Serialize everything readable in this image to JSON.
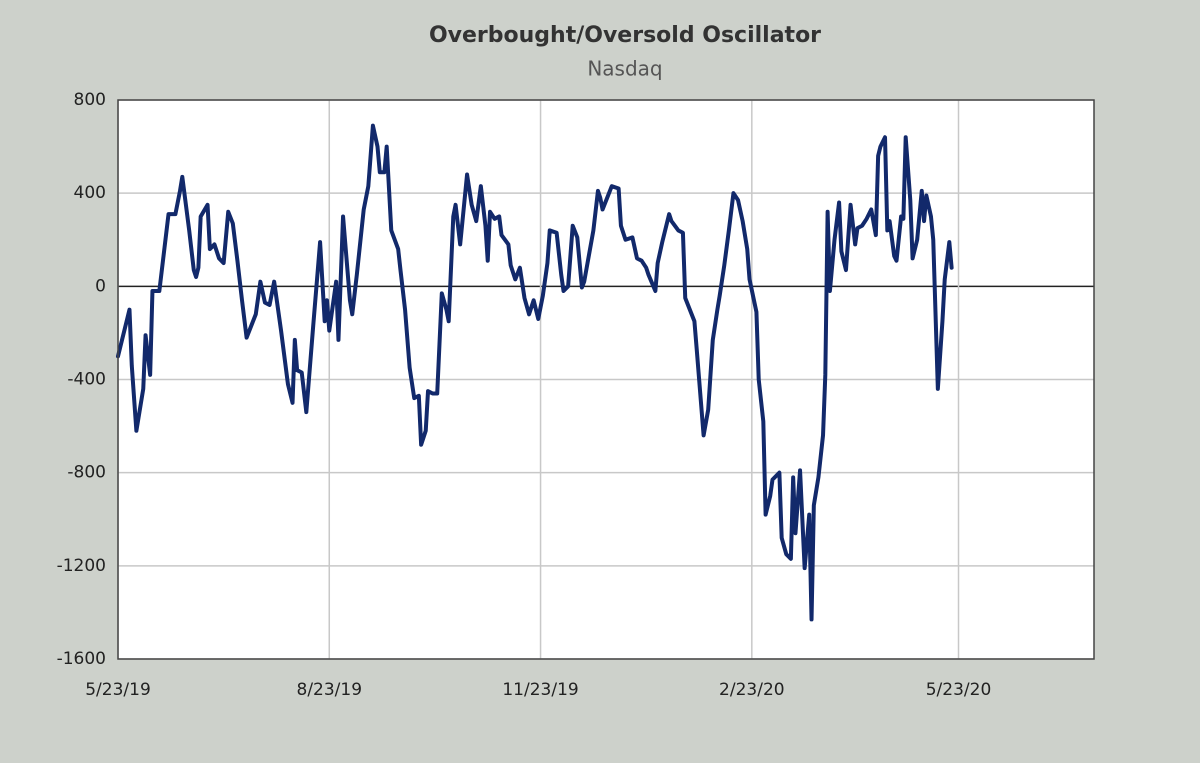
{
  "chart_data": {
    "type": "line",
    "title": "Overbought/Oversold  Oscillator",
    "subtitle": "Nasdaq",
    "color": "#12296b",
    "grid": true,
    "xlim": [
      "2019-05-23",
      "2020-07-21"
    ],
    "xticks": [
      {
        "value": "2019-05-23",
        "label": "5/23/19"
      },
      {
        "value": "2019-08-23",
        "label": "8/23/19"
      },
      {
        "value": "2019-11-23",
        "label": "11/23/19"
      },
      {
        "value": "2020-02-23",
        "label": "2/23/20"
      },
      {
        "value": "2020-05-23",
        "label": "5/23/20"
      }
    ],
    "ylim": [
      -1600,
      800
    ],
    "yticks": [
      -1600,
      -1200,
      -800,
      -400,
      0,
      400,
      800
    ],
    "x": [
      "2019-05-23",
      "2019-05-27",
      "2019-05-28",
      "2019-05-29",
      "2019-05-31",
      "2019-06-03",
      "2019-06-04",
      "2019-06-06",
      "2019-06-07",
      "2019-06-10",
      "2019-06-14",
      "2019-06-17",
      "2019-06-19",
      "2019-06-20",
      "2019-06-23",
      "2019-06-25",
      "2019-06-26",
      "2019-06-27",
      "2019-06-28",
      "2019-07-01",
      "2019-07-02",
      "2019-07-04",
      "2019-07-06",
      "2019-07-08",
      "2019-07-10",
      "2019-07-12",
      "2019-07-14",
      "2019-07-16",
      "2019-07-18",
      "2019-07-22",
      "2019-07-24",
      "2019-07-26",
      "2019-07-28",
      "2019-07-30",
      "2019-08-02",
      "2019-08-05",
      "2019-08-07",
      "2019-08-08",
      "2019-08-09",
      "2019-08-11",
      "2019-08-13",
      "2019-08-16",
      "2019-08-19",
      "2019-08-21",
      "2019-08-22",
      "2019-08-23",
      "2019-08-26",
      "2019-08-27",
      "2019-08-29",
      "2019-09-01",
      "2019-09-02",
      "2019-09-04",
      "2019-09-07",
      "2019-09-09",
      "2019-09-11",
      "2019-09-13",
      "2019-09-14",
      "2019-09-16",
      "2019-09-17",
      "2019-09-19",
      "2019-09-22",
      "2019-09-23",
      "2019-09-25",
      "2019-09-27",
      "2019-09-29",
      "2019-10-01",
      "2019-10-02",
      "2019-10-04",
      "2019-10-05",
      "2019-10-07",
      "2019-10-09",
      "2019-10-11",
      "2019-10-13",
      "2019-10-14",
      "2019-10-16",
      "2019-10-17",
      "2019-10-19",
      "2019-10-22",
      "2019-10-24",
      "2019-10-26",
      "2019-10-28",
      "2019-10-30",
      "2019-10-31",
      "2019-11-01",
      "2019-11-03",
      "2019-11-05",
      "2019-11-06",
      "2019-11-09",
      "2019-11-10",
      "2019-11-12",
      "2019-11-14",
      "2019-11-16",
      "2019-11-18",
      "2019-11-20",
      "2019-11-22",
      "2019-11-24",
      "2019-11-26",
      "2019-11-27",
      "2019-11-30",
      "2019-12-02",
      "2019-12-03",
      "2019-12-05",
      "2019-12-07",
      "2019-12-09",
      "2019-12-11",
      "2019-12-12",
      "2019-12-16",
      "2019-12-18",
      "2019-12-19",
      "2019-12-20",
      "2019-12-22",
      "2019-12-24",
      "2019-12-27",
      "2019-12-28",
      "2019-12-30",
      "2020-01-02",
      "2020-01-04",
      "2020-01-06",
      "2020-01-08",
      "2020-01-09",
      "2020-01-12",
      "2020-01-13",
      "2020-01-15",
      "2020-01-18",
      "2020-01-19",
      "2020-01-22",
      "2020-01-24",
      "2020-01-25",
      "2020-01-27",
      "2020-01-29",
      "2020-01-30",
      "2020-02-02",
      "2020-02-04",
      "2020-02-06",
      "2020-02-08",
      "2020-02-09",
      "2020-02-11",
      "2020-02-13",
      "2020-02-15",
      "2020-02-17",
      "2020-02-19",
      "2020-02-21",
      "2020-02-22",
      "2020-02-25",
      "2020-02-26",
      "2020-02-28",
      "2020-02-29",
      "2020-03-02",
      "2020-03-03",
      "2020-03-06",
      "2020-03-07",
      "2020-03-09",
      "2020-03-11",
      "2020-03-12",
      "2020-03-13",
      "2020-03-15",
      "2020-03-17",
      "2020-03-19",
      "2020-03-20",
      "2020-03-21",
      "2020-03-23",
      "2020-03-25",
      "2020-03-26",
      "2020-03-27",
      "2020-03-28",
      "2020-03-30",
      "2020-04-01",
      "2020-04-02",
      "2020-04-04",
      "2020-04-06",
      "2020-04-08",
      "2020-04-09",
      "2020-04-11",
      "2020-04-13",
      "2020-04-15",
      "2020-04-17",
      "2020-04-18",
      "2020-04-19",
      "2020-04-21",
      "2020-04-22",
      "2020-04-23",
      "2020-04-25",
      "2020-04-26",
      "2020-04-28",
      "2020-04-29",
      "2020-04-30",
      "2020-05-02",
      "2020-05-03",
      "2020-05-05",
      "2020-05-07",
      "2020-05-08",
      "2020-05-09",
      "2020-05-11",
      "2020-05-12",
      "2020-05-14",
      "2020-05-16",
      "2020-05-17",
      "2020-05-19",
      "2020-05-20"
    ],
    "values": [
      -300,
      -140,
      -100,
      -340,
      -620,
      -440,
      -210,
      -380,
      -20,
      -20,
      310,
      310,
      410,
      470,
      240,
      70,
      40,
      80,
      300,
      350,
      160,
      180,
      120,
      100,
      320,
      270,
      110,
      -60,
      -220,
      -120,
      20,
      -70,
      -80,
      20,
      -190,
      -420,
      -500,
      -230,
      -360,
      -370,
      -540,
      -170,
      190,
      -150,
      -60,
      -190,
      20,
      -230,
      300,
      -60,
      -120,
      50,
      330,
      430,
      690,
      600,
      490,
      490,
      600,
      240,
      160,
      70,
      -100,
      -350,
      -480,
      -470,
      -680,
      -620,
      -450,
      -460,
      -460,
      -30,
      -100,
      -150,
      300,
      350,
      180,
      480,
      350,
      280,
      430,
      260,
      110,
      320,
      290,
      300,
      220,
      180,
      90,
      30,
      80,
      -50,
      -120,
      -60,
      -140,
      -40,
      100,
      240,
      230,
      50,
      -20,
      0,
      260,
      210,
      -5,
      20,
      240,
      410,
      380,
      330,
      380,
      430,
      420,
      260,
      200,
      210,
      120,
      110,
      80,
      50,
      -20,
      100,
      190,
      310,
      280,
      240,
      230,
      -50,
      -100,
      -150,
      -270,
      -640,
      -530,
      -230,
      -100,
      -40,
      90,
      240,
      400,
      370,
      280,
      160,
      30,
      -110,
      -400,
      -580,
      -980,
      -900,
      -830,
      -800,
      -1080,
      -1150,
      -1170,
      -820,
      -1060,
      -790,
      -1210,
      -980,
      -1430,
      -940,
      -820,
      -640,
      -380,
      320,
      -20,
      200,
      360,
      150,
      70,
      350,
      180,
      250,
      260,
      290,
      330,
      220,
      560,
      600,
      640,
      240,
      280,
      130,
      110,
      300,
      290,
      640,
      370,
      120,
      200,
      410,
      280,
      390,
      300,
      200,
      -440,
      -150,
      30,
      190,
      80
    ]
  }
}
